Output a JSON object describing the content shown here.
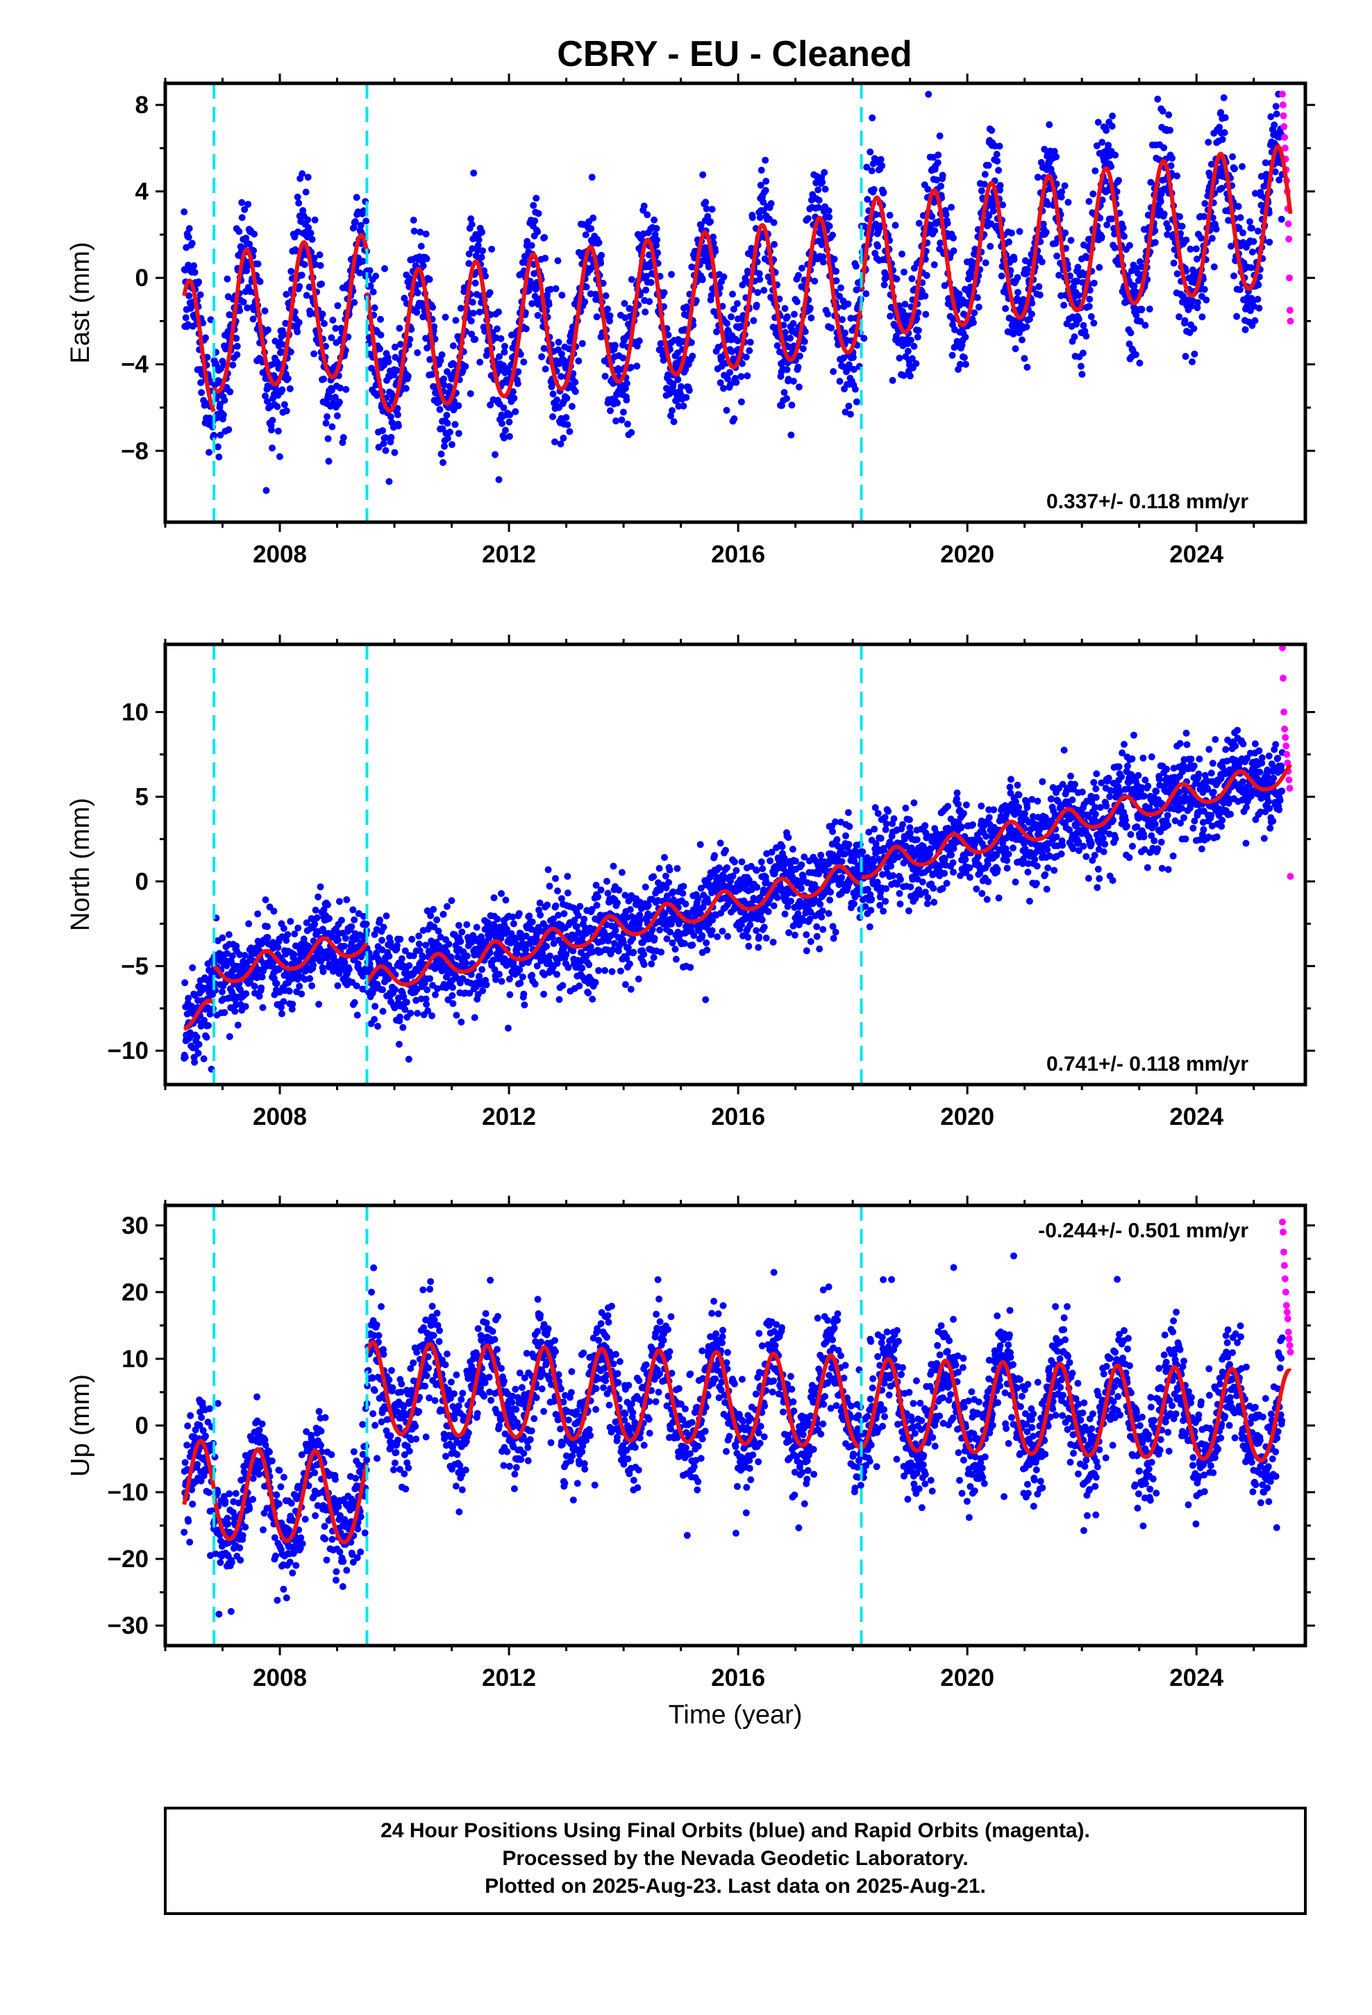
{
  "title": "CBRY  - EU - Cleaned",
  "xlabel": "Time (year)",
  "footer": [
    "24 Hour Positions Using Final Orbits (blue) and Rapid Orbits (magenta).",
    "Processed by the Nevada Geodetic Laboratory.",
    "Plotted on 2025-Aug-23. Last data on 2025-Aug-21."
  ],
  "colors": {
    "final": "#0000ff",
    "rapid": "#ff00ff",
    "model": "#ee1111",
    "steps": "#00e5ee"
  },
  "chart_data": [
    {
      "type": "scatter",
      "ylabel": "East (mm)",
      "rate": "0.337+/- 0.118 mm/yr",
      "xlim": [
        2006.0,
        2025.9
      ],
      "ylim": [
        -11.3,
        9.0
      ],
      "xticks": [
        2008,
        2012,
        2016,
        2020,
        2024
      ],
      "yticks": [
        -8,
        -4,
        0,
        4,
        8
      ],
      "ytick_labels": [
        "−8",
        "−4",
        "0",
        "4",
        "8"
      ],
      "step_epochs": [
        2006.85,
        2009.52,
        2018.15
      ],
      "data_start": 2006.33,
      "data_end": 2025.64,
      "rapid_start": 2025.5,
      "model": {
        "segments": [
          {
            "t0": 2006.33,
            "t1": 2006.85,
            "offset": -0.4
          },
          {
            "t0": 2006.85,
            "t1": 2009.52,
            "offset": 0.7
          },
          {
            "t0": 2009.52,
            "t1": 2018.15,
            "offset": -1.2
          },
          {
            "t0": 2018.15,
            "t1": 2025.64,
            "offset": -0.6
          }
        ],
        "rate": 0.337,
        "t_ref": 2016.0,
        "annual_amp": 3.2,
        "annual_peak": 0.42,
        "semiannual_amp": 0.3,
        "noise_sigma": 1.4
      },
      "rapid_values": [
        8.5,
        8.0,
        7.5,
        7.0,
        6.5,
        6.0,
        5.5,
        5.0,
        4.5,
        4.0,
        3.2,
        2.5,
        1.8,
        0.0,
        -1.5,
        -2.0
      ]
    },
    {
      "type": "scatter",
      "ylabel": "North (mm)",
      "rate": "0.741+/- 0.118 mm/yr",
      "xlim": [
        2006.0,
        2025.9
      ],
      "ylim": [
        -12.0,
        14.0
      ],
      "xticks": [
        2008,
        2012,
        2016,
        2020,
        2024
      ],
      "yticks": [
        -10,
        -5,
        0,
        5,
        10
      ],
      "ytick_labels": [
        "−10",
        "−5",
        "0",
        "5",
        "10"
      ],
      "step_epochs": [
        2006.85,
        2009.52,
        2018.15
      ],
      "data_start": 2006.33,
      "data_end": 2025.64,
      "rapid_start": 2025.5,
      "model": {
        "segments": [
          {
            "t0": 2006.33,
            "t1": 2006.85,
            "offset": -1.0
          },
          {
            "t0": 2006.85,
            "t1": 2009.52,
            "offset": 1.2
          },
          {
            "t0": 2009.52,
            "t1": 2018.15,
            "offset": -1.2
          },
          {
            "t0": 2018.15,
            "t1": 2025.64,
            "offset": -0.8
          }
        ],
        "rate": 0.741,
        "t_ref": 2016.0,
        "annual_amp": 0.7,
        "annual_peak": 0.75,
        "semiannual_amp": 0.1,
        "noise_sigma": 1.3
      },
      "rapid_values": [
        13.8,
        12.0,
        10.0,
        9.0,
        8.5,
        8.0,
        7.5,
        7.0,
        6.5,
        6.0,
        5.5,
        0.3
      ]
    },
    {
      "type": "scatter",
      "ylabel": "Up (mm)",
      "rate": "-0.244+/- 0.501 mm/yr",
      "xlim": [
        2006.0,
        2025.9
      ],
      "ylim": [
        -33.0,
        33.0
      ],
      "xticks": [
        2008,
        2012,
        2016,
        2020,
        2024
      ],
      "yticks": [
        -30,
        -20,
        -10,
        0,
        10,
        20,
        30
      ],
      "ytick_labels": [
        "−30",
        "−20",
        "−10",
        "0",
        "10",
        "20",
        "30"
      ],
      "step_epochs": [
        2006.85,
        2009.52,
        2018.15
      ],
      "data_start": 2006.33,
      "data_end": 2025.64,
      "rapid_start": 2025.5,
      "model": {
        "segments": [
          {
            "t0": 2006.33,
            "t1": 2006.85,
            "offset": -12.0
          },
          {
            "t0": 2006.85,
            "t1": 2009.52,
            "offset": -13.0
          },
          {
            "t0": 2009.52,
            "t1": 2018.15,
            "offset": 3.5
          },
          {
            "t0": 2018.15,
            "t1": 2025.64,
            "offset": 3.2
          }
        ],
        "rate": -0.244,
        "t_ref": 2016.0,
        "annual_amp": 6.8,
        "annual_peak": 0.62,
        "semiannual_amp": 0.6,
        "noise_sigma": 4.0
      },
      "rapid_values": [
        30.5,
        29.0,
        26.0,
        24.0,
        22.0,
        20.0,
        18.0,
        17.0,
        16.0,
        14.0,
        13.0,
        12.0,
        11.0
      ]
    }
  ]
}
